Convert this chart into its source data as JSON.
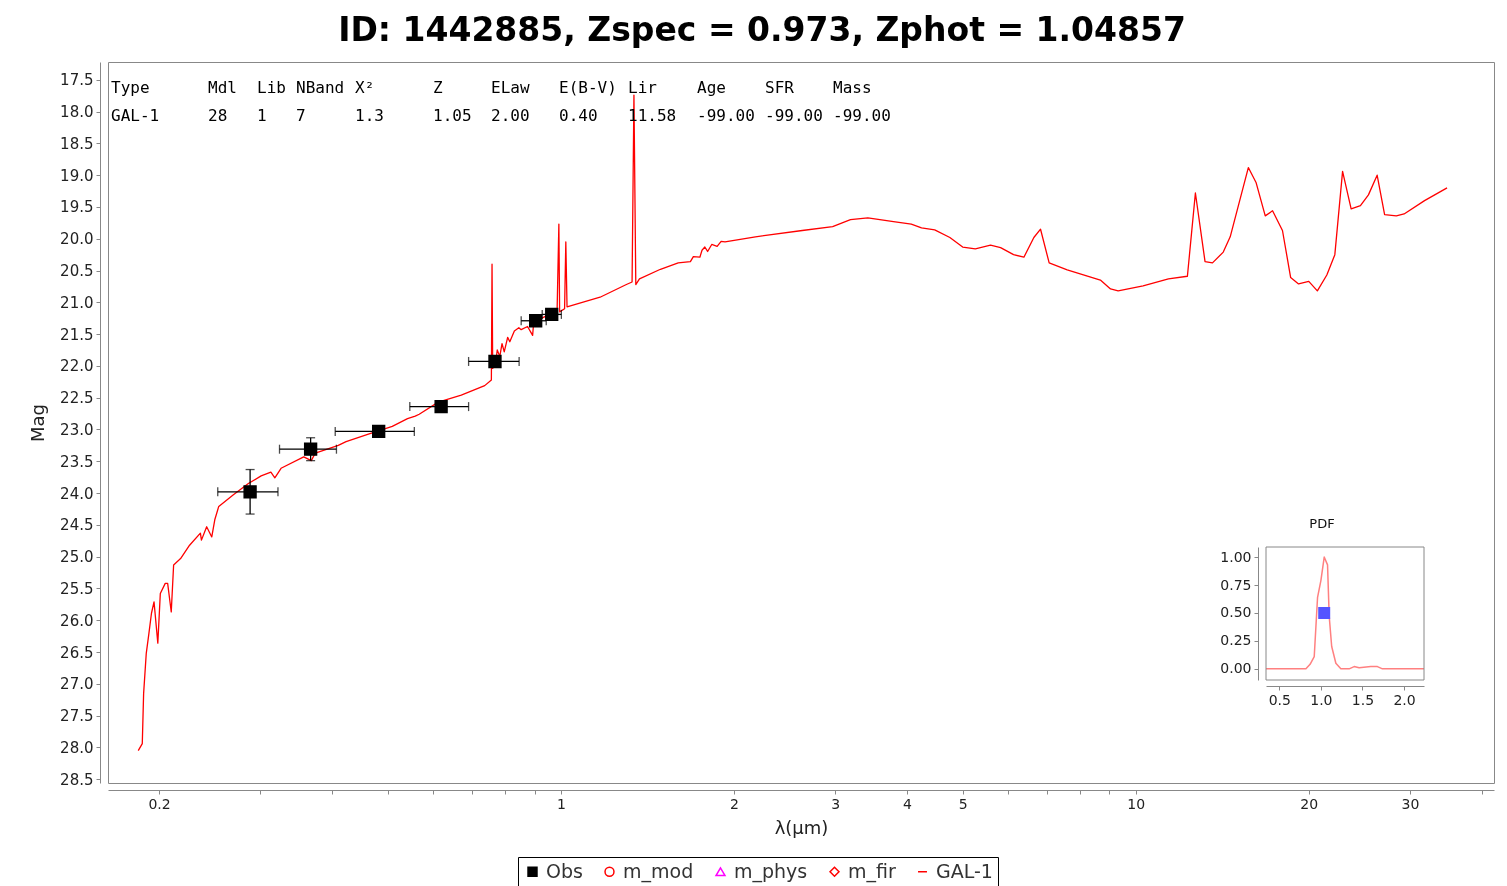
{
  "chart_data": [
    {
      "type": "line",
      "title": "ID: 1442885, Zspec = 0.973, Zphot = 1.04857",
      "xlabel": "λ(μm)",
      "ylabel": "Mag",
      "log": "x",
      "legend": "bottom",
      "xlim": [
        0.163,
        42
      ],
      "ylim": [
        28.56,
        17.22
      ],
      "xticks": [
        0.2,
        {
          "value": 0.3,
          "label": null
        },
        {
          "value": 0.4,
          "label": null
        },
        {
          "value": 0.5,
          "label": null
        },
        {
          "value": 0.6,
          "label": null
        },
        {
          "value": 0.7,
          "label": null
        },
        {
          "value": 0.8,
          "label": null
        },
        {
          "value": 0.9,
          "label": null
        },
        1,
        2,
        3,
        4,
        5,
        {
          "value": 6,
          "label": null
        },
        {
          "value": 7,
          "label": null
        },
        {
          "value": 8,
          "label": null
        },
        {
          "value": 9,
          "label": null
        },
        10,
        20,
        30,
        {
          "value": 40,
          "label": null
        }
      ],
      "yticks": [
        17.5,
        {
          "value": 18,
          "label": "18.0"
        },
        18.5,
        {
          "value": 19,
          "label": "19.0"
        },
        19.5,
        {
          "value": 20,
          "label": "20.0"
        },
        20.5,
        {
          "value": 21,
          "label": "21.0"
        },
        21.5,
        {
          "value": 22,
          "label": "22.0"
        },
        22.5,
        {
          "value": 23,
          "label": "23.0"
        },
        23.5,
        {
          "value": 24,
          "label": "24.0"
        },
        24.5,
        {
          "value": 25,
          "label": "25.0"
        },
        25.5,
        {
          "value": 26,
          "label": "26.0"
        },
        26.5,
        {
          "value": 27,
          "label": "27.0"
        },
        27.5,
        {
          "value": 28,
          "label": "28.0"
        },
        28.5
      ],
      "annotations": [
        "Type",
        "Mdl",
        "Lib",
        "NBand",
        "X²",
        "Z",
        "ELaw",
        "E(B-V)",
        "Lir",
        "Age",
        "SFR",
        "Mass",
        "GAL-1",
        "28",
        "1",
        "7",
        "1.3",
        "1.05",
        "2.00",
        "0.40",
        "11.58",
        "-99.00",
        "-99.00",
        "-99.00"
      ],
      "series": [
        {
          "name": "Obs",
          "type": "scatter",
          "marker": "square",
          "color": "#000000",
          "x": [
            0.288,
            0.367,
            0.482,
            0.619,
            0.768,
            0.904,
            0.964
          ],
          "values": [
            23.98,
            23.31,
            23.03,
            22.64,
            21.93,
            21.29,
            21.19
          ],
          "errors": [
            0.35,
            0.18,
            null,
            null,
            null,
            null,
            null
          ],
          "xerrors": [
            [
              0.253,
              0.322
            ],
            [
              0.324,
              0.407
            ],
            [
              0.405,
              0.556
            ],
            [
              0.546,
              0.691
            ],
            [
              0.691,
              0.846
            ],
            [
              0.853,
              0.943
            ],
            [
              0.928,
              1.002
            ]
          ]
        },
        {
          "name": "m_mod",
          "type": "scatter",
          "marker": "circle",
          "color": "#ff0000"
        },
        {
          "name": "m_phys",
          "type": "scatter",
          "marker": "triangle",
          "color": "#ff00ff"
        },
        {
          "name": "m_fir",
          "type": "scatter",
          "marker": "diamond",
          "color": "#ff0000"
        },
        {
          "name": "GAL-1",
          "type": "line",
          "color": "#ff0000",
          "line_style": "solid",
          "x": [
            0.184,
            0.187,
            0.188,
            0.19,
            0.192,
            0.194,
            0.196,
            0.199,
            0.201,
            0.205,
            0.207,
            0.21,
            0.212,
            0.218,
            0.226,
            0.236,
            0.237,
            0.242,
            0.247,
            0.25,
            0.254,
            0.269,
            0.286,
            0.301,
            0.313,
            0.318,
            0.326,
            0.357,
            0.368,
            0.374,
            0.41,
            0.423,
            0.464,
            0.509,
            0.541,
            0.558,
            0.567,
            0.612,
            0.671,
            0.737,
            0.757,
            0.759,
            0.761,
            0.77,
            0.775,
            0.783,
            0.79,
            0.797,
            0.808,
            0.815,
            0.83,
            0.845,
            0.853,
            0.875,
            0.893,
            0.897,
            0.94,
            0.985,
            0.992,
            0.995,
            1.015,
            1.02,
            1.025,
            1.17,
            1.3,
            1.33,
            1.34,
            1.35,
            1.37,
            1.49,
            1.6,
            1.68,
            1.7,
            1.745,
            1.76,
            1.78,
            1.8,
            1.83,
            1.87,
            1.9,
            1.93,
            2.18,
            2.63,
            2.97,
            3.19,
            3.42,
            3.79,
            4.07,
            4.24,
            4.47,
            4.75,
            5.0,
            5.26,
            5.59,
            5.82,
            6.13,
            6.39,
            6.65,
            6.83,
            7.07,
            7.6,
            8.68,
            9.04,
            9.32,
            10.3,
            11.4,
            12.3,
            12.7,
            13.2,
            13.6,
            14.2,
            14.6,
            15.7,
            16.2,
            16.8,
            17.3,
            18.0,
            18.6,
            19.2,
            20.0,
            20.7,
            21.5,
            22.2,
            22.9,
            23.7,
            24.6,
            25.4,
            26.3,
            27.1,
            28.4,
            29.3,
            31.8,
            34.8
          ],
          "values": [
            28.05,
            27.94,
            27.15,
            26.52,
            26.21,
            25.89,
            25.71,
            26.36,
            25.58,
            25.42,
            25.42,
            25.87,
            25.13,
            25.03,
            24.82,
            24.63,
            24.74,
            24.53,
            24.69,
            24.42,
            24.21,
            24.03,
            23.85,
            23.73,
            23.67,
            23.76,
            23.61,
            23.43,
            23.49,
            23.37,
            23.25,
            23.19,
            23.07,
            22.95,
            22.83,
            22.79,
            22.76,
            22.57,
            22.46,
            22.31,
            22.22,
            20.4,
            22.04,
            21.95,
            21.75,
            21.85,
            21.65,
            21.78,
            21.55,
            21.62,
            21.45,
            21.4,
            21.43,
            21.38,
            21.52,
            21.31,
            21.22,
            21.13,
            19.77,
            21.15,
            21.1,
            20.05,
            21.07,
            20.92,
            20.72,
            20.68,
            17.74,
            20.72,
            20.63,
            20.48,
            20.38,
            20.36,
            20.28,
            20.29,
            20.18,
            20.13,
            20.2,
            20.09,
            20.12,
            20.04,
            20.05,
            19.97,
            19.87,
            19.81,
            19.7,
            19.67,
            19.73,
            19.77,
            19.83,
            19.86,
            19.98,
            20.13,
            20.16,
            20.1,
            20.14,
            20.25,
            20.29,
            19.98,
            19.85,
            20.38,
            20.49,
            20.65,
            20.79,
            20.82,
            20.74,
            20.63,
            20.59,
            19.28,
            20.36,
            20.38,
            20.21,
            19.97,
            18.88,
            19.12,
            19.64,
            19.56,
            19.87,
            20.61,
            20.71,
            20.67,
            20.82,
            20.57,
            20.25,
            18.94,
            19.53,
            19.48,
            19.31,
            19.0,
            19.62,
            19.64,
            19.61,
            19.4,
            19.2
          ]
        }
      ]
    },
    {
      "type": "line",
      "title": "PDF",
      "xlim": [
        0.34,
        2.24
      ],
      "ylim": [
        -0.1,
        1.09
      ],
      "xticks": [
        0.5,
        {
          "value": 1,
          "label": "1.0"
        },
        1.5,
        {
          "value": 2,
          "label": "2.0"
        }
      ],
      "yticks": [
        {
          "value": 0,
          "label": "0.00"
        },
        0.25,
        {
          "value": 0.5,
          "label": "0.50"
        },
        0.75,
        {
          "value": 1,
          "label": "1.00"
        }
      ],
      "series": [
        {
          "type": "line",
          "color": "#ff8080",
          "line_style": "solid",
          "x": [
            0.34,
            0.82,
            0.87,
            0.92,
            0.96,
            1.0,
            1.04,
            1.08,
            1.1,
            1.13,
            1.18,
            1.24,
            1.34,
            1.4,
            1.46,
            1.6,
            1.68,
            1.74,
            2.24
          ],
          "values": [
            0,
            0,
            0.04,
            0.11,
            0.64,
            0.79,
            1.0,
            0.93,
            0.47,
            0.2,
            0.05,
            0,
            0,
            0.02,
            0.01,
            0.02,
            0.02,
            0,
            0
          ]
        },
        {
          "type": "scatter",
          "marker": "square",
          "color": "#5555ff",
          "x": [
            1.04
          ],
          "values": [
            0.5
          ]
        }
      ]
    }
  ]
}
